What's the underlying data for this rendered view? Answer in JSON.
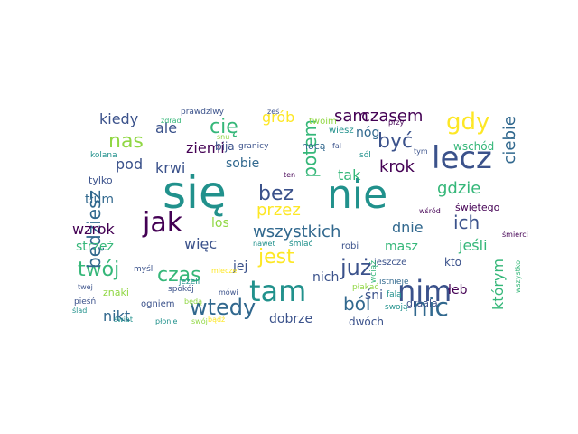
{
  "palette": {
    "dark_purple": "#440154",
    "indigo": "#3b528b",
    "blue": "#31688e",
    "teal": "#21918c",
    "green": "#35b779",
    "lime": "#90d743",
    "yellow": "#fde725"
  },
  "words": [
    "się",
    "nie",
    "lecz",
    "jak",
    "tam",
    "nim",
    "nic",
    "już",
    "bez",
    "gdy",
    "wtedy",
    "twój",
    "czas",
    "nas",
    "być",
    "jest",
    "ból",
    "ich",
    "gdzie",
    "będziesz",
    "wzrok",
    "krok",
    "przez",
    "dnie",
    "potem",
    "wszystkich",
    "kiedy",
    "ale",
    "cię",
    "czasem",
    "sam",
    "grób",
    "nóg",
    "ziemi",
    "krwi",
    "pod",
    "sobie",
    "tak",
    "ciebie",
    "wschód",
    "tłum",
    "strzeż",
    "więc",
    "los",
    "jej",
    "nich",
    "śni",
    "masz",
    "jeśli",
    "kto",
    "łeb",
    "którym",
    "nikt",
    "dobrze",
    "dwóch",
    "znaki",
    "tylko",
    "bija",
    "granicy",
    "nocą",
    "twoim",
    "prawdziwy",
    "zdrad",
    "kolana",
    "żeś",
    "fal",
    "wiesz",
    "przy",
    "sól",
    "snu",
    "ten",
    "tym",
    "wśród",
    "świętego",
    "śmierci",
    "nawet",
    "śmiać",
    "robi",
    "jeszcze",
    "wciąż",
    "istnieje",
    "falą",
    "płakać",
    "swoją",
    "graala",
    "wszystko",
    "myśl",
    "spokój",
    "jeżeli",
    "mówi",
    "ogniem",
    "będą",
    "pieśń",
    "twej",
    "świat",
    "miecze",
    "płonie",
    "swój",
    "ślad",
    "bądź"
  ]
}
